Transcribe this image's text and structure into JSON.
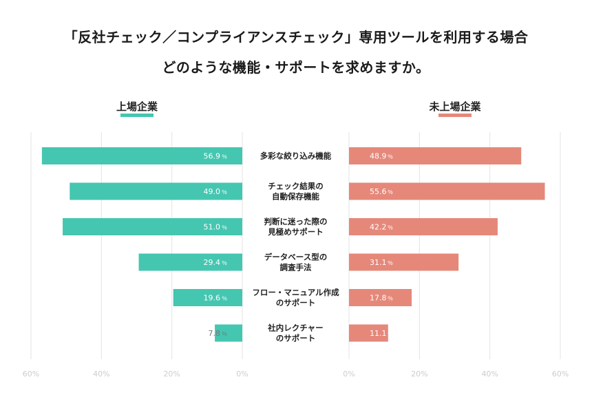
{
  "title": {
    "line1": "「反社チェック／コンプライアンスチェック」専用ツールを利用する場合",
    "line2": "どのような機能・サポートを求めますか。"
  },
  "colors": {
    "left": "#45c6b0",
    "right": "#e5887a",
    "grid": "#e3e3e3",
    "tick": "#cccccc"
  },
  "chart_data": {
    "type": "bar",
    "orientation": "horizontal-butterfly",
    "title": "「反社チェック／コンプライアンスチェック」専用ツールを利用する場合 どのような機能・サポートを求めますか。",
    "categories": [
      [
        "多彩な絞り込み機能"
      ],
      [
        "チェック結果の",
        "自動保存機能"
      ],
      [
        "判断に迷った際の",
        "見極めサポート"
      ],
      [
        "データベース型の",
        "調査手法"
      ],
      [
        "フロー・マニュアル作成",
        "のサポート"
      ],
      [
        "社内レクチャー",
        "のサポート"
      ]
    ],
    "series": [
      {
        "name": "上場企業",
        "values": [
          56.9,
          49.0,
          51.0,
          29.4,
          19.6,
          7.8
        ],
        "labels": [
          "56.9",
          "49.0",
          "51.0",
          "29.4",
          "19.6",
          "7.8"
        ]
      },
      {
        "name": "未上場企業",
        "values": [
          48.9,
          55.6,
          42.2,
          31.1,
          17.8,
          11.1
        ],
        "labels": [
          "48.9",
          "55.6",
          "42.2",
          "31.1",
          "17.8",
          "11.1"
        ]
      }
    ],
    "unit": "％",
    "xlim": [
      0,
      60
    ],
    "ticks": [
      0,
      20,
      40,
      60
    ],
    "tick_suffix": "%",
    "grid": true
  }
}
